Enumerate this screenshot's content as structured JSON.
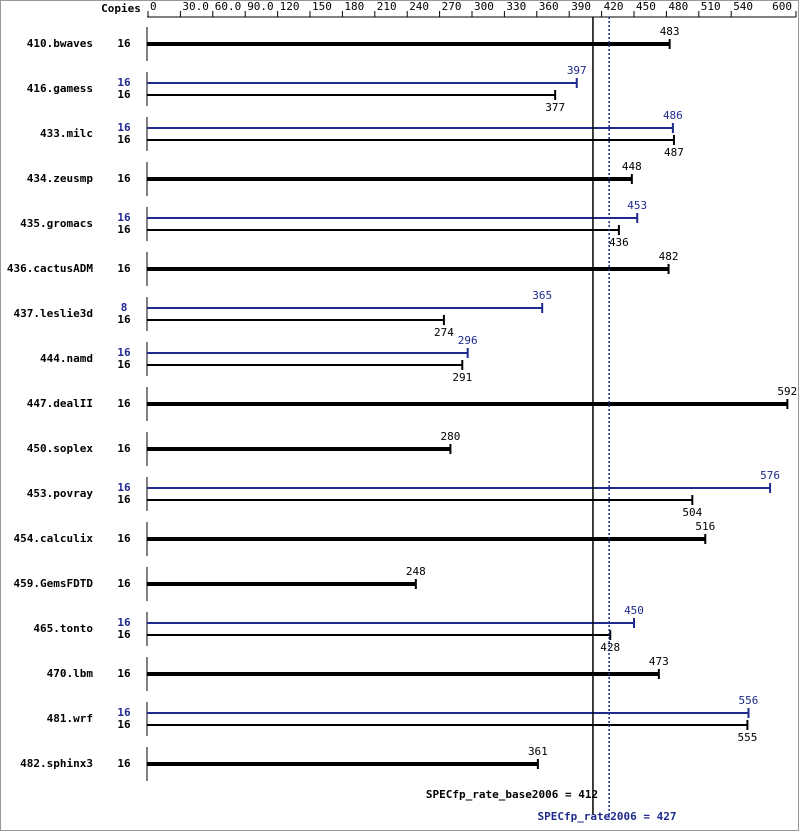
{
  "chart_data": {
    "type": "bar",
    "copies_label": "Copies",
    "categories": [
      "410.bwaves",
      "416.gamess",
      "433.milc",
      "434.zeusmp",
      "435.gromacs",
      "436.cactusADM",
      "437.leslie3d",
      "444.namd",
      "447.dealII",
      "450.soplex",
      "453.povray",
      "454.calculix",
      "459.GemsFDTD",
      "465.tonto",
      "470.lbm",
      "481.wrf",
      "482.sphinx3"
    ],
    "series": [
      {
        "color": "#000000",
        "copies": [
          16,
          16,
          16,
          16,
          16,
          16,
          16,
          16,
          16,
          16,
          16,
          16,
          16,
          16,
          16,
          16,
          16
        ],
        "values": [
          483,
          377,
          487,
          448,
          436,
          482,
          274,
          291,
          592,
          280,
          504,
          516,
          248,
          428,
          473,
          555,
          361
        ]
      },
      {
        "color": "#1f2a8c",
        "copies": [
          null,
          16,
          16,
          null,
          16,
          null,
          8,
          16,
          null,
          null,
          16,
          null,
          null,
          16,
          null,
          16,
          null
        ],
        "values": [
          null,
          397,
          486,
          null,
          453,
          null,
          365,
          296,
          null,
          null,
          576,
          null,
          null,
          450,
          null,
          556,
          null
        ]
      }
    ],
    "xlim": [
      0,
      600
    ],
    "xticks": [
      0,
      {
        "value": 30,
        "label": "30.0"
      },
      {
        "value": 60,
        "label": "60.0"
      },
      {
        "value": 90,
        "label": "90.0"
      },
      120,
      150,
      180,
      210,
      240,
      270,
      300,
      330,
      360,
      390,
      420,
      450,
      480,
      510,
      540,
      600
    ],
    "reference_lines": [
      {
        "text": "SPECfp_rate_base2006 = 412",
        "value": 412,
        "color": "#000000",
        "style": "solid"
      },
      {
        "text": "SPECfp_rate2006 = 427",
        "value": 427,
        "color": "#1f2a8c",
        "style": "dotted"
      }
    ]
  }
}
